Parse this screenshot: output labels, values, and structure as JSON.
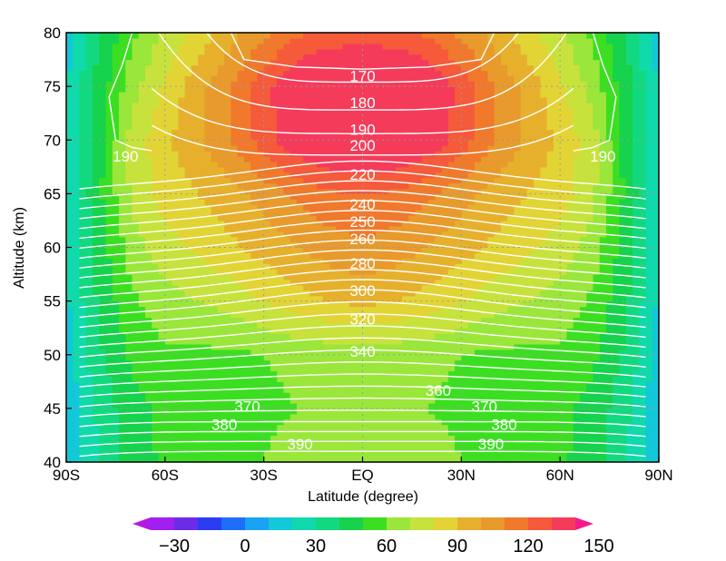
{
  "chart_data": {
    "type": "heatmap",
    "title": "",
    "xlabel": "Latitude (degree)",
    "ylabel": "Altitude (km)",
    "xlim": [
      -90,
      90
    ],
    "ylim": [
      40,
      80
    ],
    "grid": true,
    "x_ticks": [
      {
        "value": -90,
        "label": "90S"
      },
      {
        "value": -60,
        "label": "60S"
      },
      {
        "value": -30,
        "label": "30S"
      },
      {
        "value": 0,
        "label": "EQ"
      },
      {
        "value": 30,
        "label": "30N"
      },
      {
        "value": 60,
        "label": "60N"
      },
      {
        "value": 90,
        "label": "90N"
      }
    ],
    "y_ticks": [
      {
        "value": 40,
        "label": "40"
      },
      {
        "value": 45,
        "label": "45"
      },
      {
        "value": 50,
        "label": "50"
      },
      {
        "value": 55,
        "label": "55"
      },
      {
        "value": 60,
        "label": "60"
      },
      {
        "value": 65,
        "label": "65"
      },
      {
        "value": 70,
        "label": "70"
      },
      {
        "value": 75,
        "label": "75"
      },
      {
        "value": 80,
        "label": "80"
      }
    ],
    "colorbar": {
      "range": [
        -40,
        160
      ],
      "step": 10,
      "tick_labels": [
        {
          "value": -30,
          "label": "−30"
        },
        {
          "value": 0,
          "label": "0"
        },
        {
          "value": 30,
          "label": "30"
        },
        {
          "value": 60,
          "label": "60"
        },
        {
          "value": 90,
          "label": "90"
        },
        {
          "value": 120,
          "label": "120"
        },
        {
          "value": 150,
          "label": "150"
        }
      ],
      "colors": [
        "#a020f0",
        "#6a2ce6",
        "#2b3cf2",
        "#1f6ef8",
        "#1aa3f5",
        "#13c8d8",
        "#10d9ab",
        "#12d97f",
        "#16d24c",
        "#3cde22",
        "#9ae63a",
        "#c8e23d",
        "#e2d435",
        "#e6b02d",
        "#e89a2c",
        "#f0792c",
        "#f55a3b",
        "#f53b5a"
      ],
      "extend": "both"
    },
    "shaded_field": {
      "description_levels": "values in colorbar units",
      "latitudes": [
        -90,
        -80,
        -70,
        -60,
        -50,
        -40,
        -30,
        -20,
        -10,
        0,
        10,
        20,
        30,
        40,
        50,
        60,
        70,
        80,
        90
      ],
      "altitudes": [
        40,
        45,
        50,
        55,
        60,
        65,
        70,
        75,
        80
      ],
      "values": [
        [
          10,
          30,
          45,
          52,
          56,
          58,
          60,
          64,
          66,
          67,
          66,
          64,
          60,
          58,
          56,
          52,
          45,
          30,
          10
        ],
        [
          12,
          33,
          47,
          52,
          54,
          55,
          58,
          60,
          63,
          64,
          63,
          60,
          58,
          55,
          54,
          52,
          47,
          33,
          12
        ],
        [
          15,
          38,
          52,
          58,
          58,
          58,
          60,
          62,
          64,
          65,
          64,
          62,
          60,
          58,
          58,
          58,
          52,
          38,
          15
        ],
        [
          18,
          42,
          58,
          66,
          70,
          74,
          80,
          86,
          90,
          92,
          90,
          86,
          80,
          74,
          70,
          66,
          58,
          42,
          18
        ],
        [
          20,
          45,
          65,
          76,
          82,
          88,
          94,
          100,
          105,
          108,
          105,
          100,
          94,
          88,
          82,
          76,
          65,
          45,
          20
        ],
        [
          22,
          48,
          72,
          84,
          90,
          96,
          104,
          112,
          118,
          120,
          118,
          112,
          104,
          96,
          90,
          84,
          72,
          48,
          22
        ],
        [
          20,
          46,
          74,
          88,
          98,
          110,
          125,
          138,
          146,
          148,
          146,
          138,
          125,
          110,
          98,
          88,
          74,
          46,
          20
        ],
        [
          18,
          44,
          66,
          82,
          96,
          110,
          126,
          142,
          150,
          152,
          150,
          142,
          126,
          110,
          96,
          82,
          66,
          44,
          18
        ],
        [
          16,
          40,
          58,
          72,
          84,
          96,
          108,
          118,
          122,
          124,
          122,
          118,
          108,
          96,
          84,
          72,
          58,
          40,
          16
        ]
      ]
    },
    "contours": {
      "color": "#ffffff",
      "labels": [
        {
          "text": "170",
          "lat": 0,
          "alt": 76.0
        },
        {
          "text": "180",
          "lat": 0,
          "alt": 73.5
        },
        {
          "text": "190",
          "lat": 0,
          "alt": 71.0
        },
        {
          "text": "200",
          "lat": 0,
          "alt": 69.5
        },
        {
          "text": "220",
          "lat": 0,
          "alt": 66.8
        },
        {
          "text": "240",
          "lat": 0,
          "alt": 64.0
        },
        {
          "text": "250",
          "lat": 0,
          "alt": 62.4
        },
        {
          "text": "260",
          "lat": 0,
          "alt": 60.8
        },
        {
          "text": "280",
          "lat": 0,
          "alt": 58.5
        },
        {
          "text": "300",
          "lat": 0,
          "alt": 56.0
        },
        {
          "text": "320",
          "lat": 0,
          "alt": 53.3
        },
        {
          "text": "340",
          "lat": 0,
          "alt": 50.3
        },
        {
          "text": "360",
          "lat": 23,
          "alt": 46.7
        },
        {
          "text": "370",
          "lat": -35,
          "alt": 45.2
        },
        {
          "text": "370",
          "lat": 37,
          "alt": 45.2
        },
        {
          "text": "380",
          "lat": -42,
          "alt": 43.5
        },
        {
          "text": "380",
          "lat": 43,
          "alt": 43.5
        },
        {
          "text": "390",
          "lat": -19,
          "alt": 41.7
        },
        {
          "text": "390",
          "lat": 39,
          "alt": 41.7
        },
        {
          "text": "190",
          "lat": -72,
          "alt": 68.5
        },
        {
          "text": "190",
          "lat": 73,
          "alt": 68.5
        }
      ]
    }
  }
}
